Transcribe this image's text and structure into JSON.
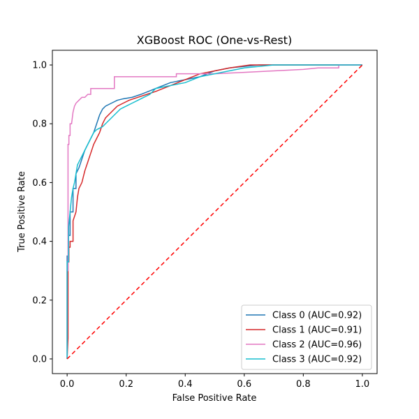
{
  "chart_data": {
    "type": "line",
    "title": "XGBoost ROC (One-vs-Rest)",
    "xlabel": "False Positive Rate",
    "ylabel": "True Positive Rate",
    "xlim": [
      -0.05,
      1.05
    ],
    "ylim": [
      -0.05,
      1.05
    ],
    "x_ticks": [
      0.0,
      0.2,
      0.4,
      0.6,
      0.8,
      1.0
    ],
    "y_ticks": [
      0.0,
      0.2,
      0.4,
      0.6,
      0.8,
      1.0
    ],
    "x_tick_labels": [
      "0.0",
      "0.2",
      "0.4",
      "0.6",
      "0.8",
      "1.0"
    ],
    "y_tick_labels": [
      "0.0",
      "0.2",
      "0.4",
      "0.6",
      "0.8",
      "1.0"
    ],
    "grid": false,
    "legend_position": "lower-right",
    "series": [
      {
        "name": "Class 0 (AUC=0.92)",
        "color": "#1f77b4",
        "x": [
          0,
          0,
          0.005,
          0.005,
          0.01,
          0.01,
          0.02,
          0.02,
          0.03,
          0.03,
          0.04,
          0.05,
          0.06,
          0.07,
          0.08,
          0.09,
          0.1,
          0.11,
          0.12,
          0.13,
          0.15,
          0.17,
          0.19,
          0.22,
          0.25,
          0.3,
          0.35,
          0.4,
          0.45,
          0.5,
          0.55,
          0.6,
          0.65,
          0.8,
          1.0
        ],
        "y": [
          0,
          0.35,
          0.35,
          0.42,
          0.42,
          0.5,
          0.5,
          0.58,
          0.58,
          0.63,
          0.65,
          0.68,
          0.71,
          0.73,
          0.75,
          0.77,
          0.8,
          0.83,
          0.85,
          0.86,
          0.87,
          0.88,
          0.885,
          0.89,
          0.9,
          0.92,
          0.94,
          0.95,
          0.96,
          0.98,
          0.99,
          0.995,
          1.0,
          1.0,
          1.0
        ]
      },
      {
        "name": "Class 1 (AUC=0.91)",
        "color": "#d62728",
        "x": [
          0,
          0.003,
          0.003,
          0.006,
          0.006,
          0.01,
          0.01,
          0.02,
          0.02,
          0.03,
          0.035,
          0.04,
          0.05,
          0.06,
          0.07,
          0.08,
          0.09,
          0.1,
          0.11,
          0.12,
          0.13,
          0.15,
          0.17,
          0.19,
          0.21,
          0.24,
          0.27,
          0.3,
          0.35,
          0.4,
          0.45,
          0.5,
          0.55,
          0.62,
          0.7,
          1.0
        ],
        "y": [
          0,
          0.07,
          0.33,
          0.33,
          0.38,
          0.38,
          0.4,
          0.4,
          0.47,
          0.5,
          0.55,
          0.58,
          0.6,
          0.64,
          0.67,
          0.7,
          0.73,
          0.75,
          0.77,
          0.8,
          0.82,
          0.84,
          0.86,
          0.87,
          0.88,
          0.89,
          0.9,
          0.91,
          0.93,
          0.95,
          0.97,
          0.98,
          0.99,
          1.0,
          1.0,
          1.0
        ]
      },
      {
        "name": "Class 2 (AUC=0.96)",
        "color": "#e377c2",
        "x": [
          0,
          0,
          0.003,
          0.003,
          0.006,
          0.006,
          0.01,
          0.01,
          0.015,
          0.02,
          0.025,
          0.03,
          0.04,
          0.05,
          0.06,
          0.07,
          0.08,
          0.08,
          0.12,
          0.16,
          0.16,
          0.2,
          0.3,
          0.37,
          0.37,
          0.5,
          0.6,
          0.7,
          0.8,
          0.85,
          0.92,
          0.92,
          1.0
        ],
        "y": [
          0,
          0.3,
          0.3,
          0.73,
          0.73,
          0.76,
          0.76,
          0.8,
          0.8,
          0.84,
          0.86,
          0.87,
          0.88,
          0.89,
          0.89,
          0.9,
          0.9,
          0.92,
          0.92,
          0.92,
          0.96,
          0.96,
          0.96,
          0.96,
          0.97,
          0.97,
          0.975,
          0.98,
          0.985,
          0.99,
          0.99,
          1.0,
          1.0
        ]
      },
      {
        "name": "Class 3 (AUC=0.92)",
        "color": "#17becf",
        "x": [
          0,
          0,
          0.005,
          0.005,
          0.01,
          0.015,
          0.02,
          0.025,
          0.03,
          0.035,
          0.04,
          0.05,
          0.06,
          0.07,
          0.08,
          0.09,
          0.1,
          0.12,
          0.14,
          0.16,
          0.18,
          0.2,
          0.22,
          0.24,
          0.26,
          0.28,
          0.3,
          0.35,
          0.4,
          0.45,
          0.5,
          0.6,
          0.7,
          0.85,
          1.0
        ],
        "y": [
          0,
          0.33,
          0.33,
          0.45,
          0.5,
          0.55,
          0.58,
          0.6,
          0.63,
          0.66,
          0.67,
          0.69,
          0.71,
          0.73,
          0.75,
          0.77,
          0.78,
          0.79,
          0.81,
          0.83,
          0.85,
          0.86,
          0.87,
          0.88,
          0.89,
          0.9,
          0.92,
          0.93,
          0.94,
          0.96,
          0.97,
          0.99,
          1.0,
          1.0,
          1.0
        ]
      }
    ],
    "reference_line": {
      "color": "#ff0000",
      "x": [
        0,
        1
      ],
      "y": [
        0,
        1
      ]
    }
  }
}
